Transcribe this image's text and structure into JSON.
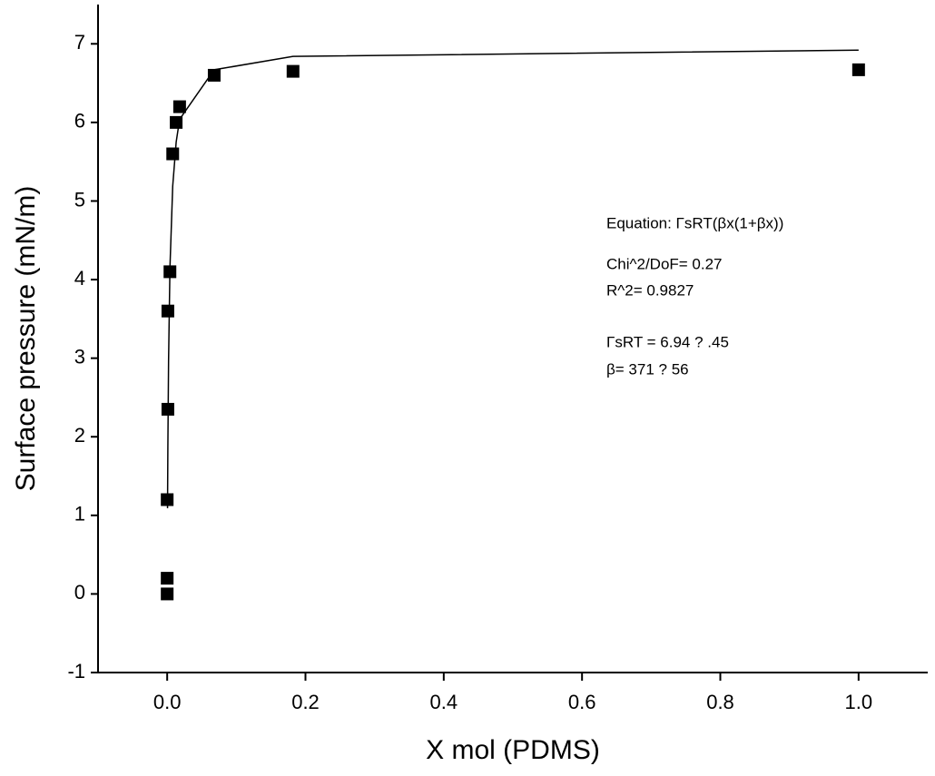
{
  "chart_data": {
    "type": "scatter",
    "x_label": "X mol (PDMS)",
    "y_label": "Surface pressure (mN/m)",
    "xlim": [
      -0.1,
      1.1
    ],
    "ylim": [
      -1,
      7.5
    ],
    "xticks": [
      {
        "value": 0,
        "label": "0.0"
      },
      {
        "value": 0.2,
        "label": "0.2"
      },
      {
        "value": 0.4,
        "label": "0.4"
      },
      {
        "value": 0.6,
        "label": "0.6"
      },
      {
        "value": 0.8,
        "label": "0.8"
      },
      {
        "value": 1,
        "label": "1.0"
      }
    ],
    "yticks": [
      -1,
      0,
      1,
      2,
      3,
      4,
      5,
      6,
      7
    ],
    "series": [
      {
        "kind": "points",
        "color": "#000000",
        "x": [
          0,
          0,
          0,
          0.001,
          0.001,
          0.004,
          0.008,
          0.013,
          0.018,
          0.068,
          0.182,
          1.0
        ],
        "values": [
          0,
          0.2,
          1.2,
          2.35,
          3.6,
          4.1,
          5.6,
          6.0,
          6.2,
          6.6,
          6.65,
          6.67
        ]
      },
      {
        "kind": "line",
        "color": "#000000",
        "x": [
          0.0005,
          0.001,
          0.002,
          0.004,
          0.008,
          0.013,
          0.018,
          0.068,
          0.182,
          1.0
        ],
        "values": [
          1.09,
          1.88,
          2.96,
          4.15,
          5.19,
          5.75,
          6.04,
          6.67,
          6.84,
          6.92
        ]
      }
    ],
    "annotations": [
      "Equation: ΓsRT(βx(1+βx))",
      "Chi^2/DoF= 0.27",
      "R^2= 0.9827",
      "ΓsRT = 6.94 ?  .45",
      "β= 371 ? 56"
    ]
  }
}
